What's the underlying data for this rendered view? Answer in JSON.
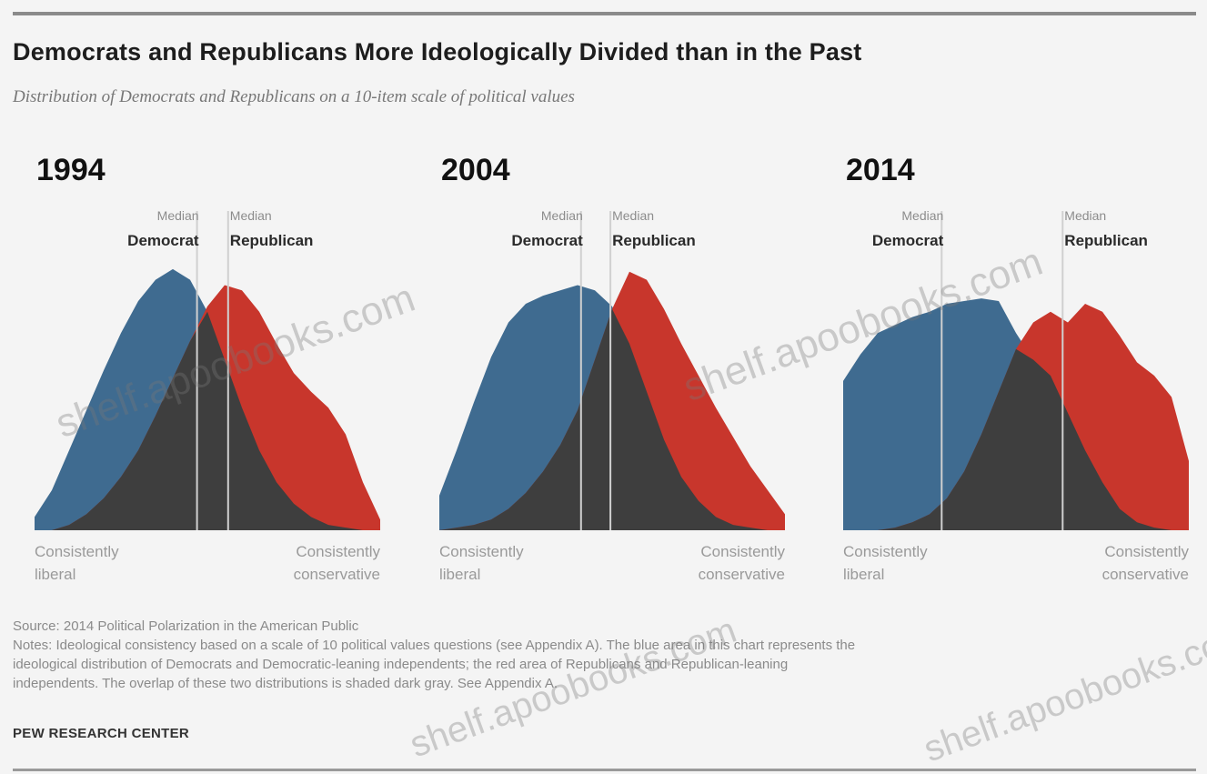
{
  "header": {
    "title": "Democrats and Republicans More Ideologically Divided than in the Past",
    "subtitle": "Distribution of Democrats and Republicans on a 10-item scale of political values"
  },
  "colors": {
    "democrat": "#3f6b90",
    "republican": "#c8362c",
    "overlap": "#3e3e3e",
    "median_line": "#d0d0d0",
    "background": "#f4f4f4"
  },
  "chart_data": [
    {
      "type": "area",
      "title": "1994",
      "x": [
        1,
        2,
        3,
        4,
        5,
        6,
        7,
        8,
        9,
        10,
        11,
        12,
        13,
        14,
        15,
        16,
        17,
        18,
        19,
        20,
        21
      ],
      "series": [
        {
          "name": "Democrat",
          "values": [
            0.5,
            1.5,
            3.0,
            4.5,
            6.0,
            7.4,
            8.6,
            9.4,
            9.8,
            9.4,
            8.2,
            6.4,
            4.6,
            3.0,
            1.8,
            1.0,
            0.5,
            0.2,
            0.1,
            0,
            0
          ]
        },
        {
          "name": "Republican",
          "values": [
            0,
            0,
            0.2,
            0.6,
            1.2,
            2.0,
            3.0,
            4.3,
            5.7,
            7.1,
            8.4,
            9.2,
            9.0,
            8.2,
            7.0,
            5.9,
            5.2,
            4.6,
            3.6,
            1.8,
            0.4
          ]
        }
      ],
      "median_labels": [
        {
          "label": "Median Democrat",
          "small": "Median"
        },
        {
          "label": "Median Republican",
          "small": "Median"
        }
      ],
      "median_x": [
        10.4,
        12.2
      ]
    },
    {
      "type": "area",
      "title": "2004",
      "x": [
        1,
        2,
        3,
        4,
        5,
        6,
        7,
        8,
        9,
        10,
        11,
        12,
        13,
        14,
        15,
        16,
        17,
        18,
        19,
        20,
        21
      ],
      "series": [
        {
          "name": "Democrat",
          "values": [
            1.3,
            3.0,
            4.8,
            6.5,
            7.8,
            8.5,
            8.8,
            9.0,
            9.2,
            9.0,
            8.4,
            7.0,
            5.2,
            3.4,
            2.0,
            1.1,
            0.5,
            0.2,
            0.1,
            0,
            0
          ]
        },
        {
          "name": "Republican",
          "values": [
            0,
            0.1,
            0.2,
            0.4,
            0.8,
            1.4,
            2.2,
            3.2,
            4.5,
            6.4,
            8.3,
            9.7,
            9.4,
            8.3,
            7.0,
            5.8,
            4.6,
            3.5,
            2.4,
            1.5,
            0.6
          ]
        }
      ],
      "median_labels": [
        {
          "label": "Median Democrat",
          "small": "Median"
        },
        {
          "label": "Median Republican",
          "small": "Median"
        }
      ],
      "median_x": [
        9.2,
        10.9
      ]
    },
    {
      "type": "area",
      "title": "2014",
      "x": [
        1,
        2,
        3,
        4,
        5,
        6,
        7,
        8,
        9,
        10,
        11,
        12,
        13,
        14,
        15,
        16,
        17,
        18,
        19,
        20,
        21
      ],
      "series": [
        {
          "name": "Democrat",
          "values": [
            5.6,
            6.6,
            7.4,
            7.7,
            8.0,
            8.2,
            8.5,
            8.6,
            8.7,
            8.6,
            7.4,
            6.4,
            5.8,
            4.4,
            3.0,
            1.8,
            0.8,
            0.3,
            0.1,
            0,
            0
          ]
        },
        {
          "name": "Republican",
          "values": [
            0,
            0,
            0,
            0.1,
            0.3,
            0.6,
            1.2,
            2.2,
            3.6,
            5.2,
            6.8,
            7.8,
            8.2,
            7.8,
            8.5,
            8.2,
            7.3,
            6.3,
            5.8,
            5.0,
            2.6
          ]
        }
      ],
      "median_labels": [
        {
          "label": "Median Democrat",
          "small": "Median"
        },
        {
          "label": "Median Republican",
          "small": "Median"
        }
      ],
      "median_x": [
        6.7,
        13.7
      ]
    }
  ],
  "axis": {
    "left_note_line1": "Consistently",
    "left_note_line2": "liberal",
    "right_note_line1": "Consistently",
    "right_note_line2": "conservative"
  },
  "notes": {
    "source": "Source: 2014 Political Polarization in the American Public",
    "line1": "Notes: Ideological consistency based on a scale of 10 political values questions (see Appendix A). The blue area in this chart represents the",
    "line2": "ideological distribution of Democrats and Democratic-leaning independents; the red area of Republicans and Republican-leaning",
    "line3": "independents. The overlap of these two distributions is shaded dark gray. See Appendix A."
  },
  "org": "PEW RESEARCH CENTER",
  "watermark": "shelf.apoobooks.com"
}
